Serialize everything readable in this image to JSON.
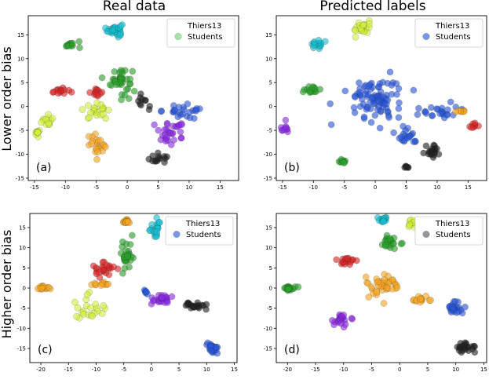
{
  "figure": {
    "column_titles": [
      "Real data",
      "Predicted labels"
    ],
    "row_titles": [
      "Lower order bias",
      "Higher order bias"
    ]
  },
  "cluster_colors": {
    "red": "#d62728",
    "green": "#2ca02c",
    "cyan": "#17becf",
    "yellow": "#d4f03c",
    "orange": "#f5a623",
    "purple": "#8a2be2",
    "blue": "#2b57d8",
    "black": "#222222",
    "lightgreen": "#6fd36f",
    "gray": "#555555"
  },
  "chart_data": [
    {
      "type": "scatter",
      "panel_label": "(a)",
      "title": "Real data",
      "ylabel": "Lower order bias",
      "xlim": [
        -16,
        18
      ],
      "ylim": [
        -15.5,
        19
      ],
      "xticks": [
        -15,
        -10,
        -5,
        0,
        5,
        10,
        15
      ],
      "yticks": [
        -15,
        -10,
        -5,
        0,
        5,
        10,
        15
      ],
      "legend": [
        {
          "label": "Thiers13",
          "marker": "none"
        },
        {
          "label": "Students",
          "color": "#6fd36f"
        }
      ],
      "clusters": [
        {
          "color": "cyan",
          "n": 28,
          "cx": -2,
          "cy": 16,
          "sx": 1.1,
          "sy": 1.3
        },
        {
          "color": "green",
          "n": 14,
          "cx": -9,
          "cy": 13,
          "sx": 1.3,
          "sy": 0.8
        },
        {
          "color": "green",
          "n": 40,
          "cx": -1,
          "cy": 5.5,
          "sx": 1.6,
          "sy": 2.6
        },
        {
          "color": "red",
          "n": 14,
          "cx": -11,
          "cy": 3.3,
          "sx": 1.4,
          "sy": 0.7
        },
        {
          "color": "red",
          "n": 12,
          "cx": -5,
          "cy": 3,
          "sx": 1.2,
          "sy": 0.8
        },
        {
          "color": "yellow",
          "n": 12,
          "cx": -13,
          "cy": -3,
          "sx": 1.0,
          "sy": 1.1
        },
        {
          "color": "yellow",
          "n": 10,
          "cx": -14.5,
          "cy": -5.5,
          "sx": 0.4,
          "sy": 0.5
        },
        {
          "color": "yellow",
          "n": 22,
          "cx": -5,
          "cy": -1,
          "sx": 2.0,
          "sy": 1.4
        },
        {
          "color": "orange",
          "n": 22,
          "cx": -5,
          "cy": -8,
          "sx": 1.3,
          "sy": 2.2
        },
        {
          "color": "blue",
          "n": 24,
          "cx": 10,
          "cy": -1,
          "sx": 4.0,
          "sy": 1.2
        },
        {
          "color": "purple",
          "n": 30,
          "cx": 7,
          "cy": -5.5,
          "sx": 2.6,
          "sy": 2.0
        },
        {
          "color": "black",
          "n": 14,
          "cx": 5,
          "cy": -11,
          "sx": 1.6,
          "sy": 1.1
        },
        {
          "color": "black",
          "n": 10,
          "cx": 2.5,
          "cy": 0.5,
          "sx": 1.0,
          "sy": 1.3
        }
      ]
    },
    {
      "type": "scatter",
      "panel_label": "(b)",
      "title": "Predicted labels",
      "xlim": [
        -16,
        18
      ],
      "ylim": [
        -15.5,
        19
      ],
      "xticks": [
        -15,
        -10,
        -5,
        0,
        5,
        10,
        15
      ],
      "yticks": [
        -15,
        -10,
        -5,
        0,
        5,
        10,
        15
      ],
      "legend": [
        {
          "label": "Thiers13",
          "marker": "none"
        },
        {
          "label": "Students",
          "color": "#2b57d8"
        }
      ],
      "clusters": [
        {
          "color": "cyan",
          "n": 16,
          "cx": -9.5,
          "cy": 13,
          "sx": 1.0,
          "sy": 1.0
        },
        {
          "color": "yellow",
          "n": 22,
          "cx": -2,
          "cy": 16.5,
          "sx": 1.2,
          "sy": 1.2
        },
        {
          "color": "green",
          "n": 16,
          "cx": -10,
          "cy": 3.5,
          "sx": 1.2,
          "sy": 0.8
        },
        {
          "color": "green",
          "n": 10,
          "cx": -5.5,
          "cy": -11.5,
          "sx": 0.6,
          "sy": 0.5
        },
        {
          "color": "purple",
          "n": 10,
          "cx": -14.5,
          "cy": -4.5,
          "sx": 0.6,
          "sy": 1.4
        },
        {
          "color": "blue",
          "n": 90,
          "cx": 0,
          "cy": 1.5,
          "sx": 4.0,
          "sy": 4.2
        },
        {
          "color": "blue",
          "n": 24,
          "cx": 10,
          "cy": -1,
          "sx": 3.2,
          "sy": 1.3
        },
        {
          "color": "blue",
          "n": 20,
          "cx": 5,
          "cy": -6,
          "sx": 1.8,
          "sy": 1.6
        },
        {
          "color": "orange",
          "n": 8,
          "cx": 14,
          "cy": -1,
          "sx": 1.2,
          "sy": 0.5
        },
        {
          "color": "red",
          "n": 8,
          "cx": 16,
          "cy": -4,
          "sx": 0.6,
          "sy": 0.5
        },
        {
          "color": "black",
          "n": 20,
          "cx": 9,
          "cy": -9.5,
          "sx": 1.5,
          "sy": 1.5
        },
        {
          "color": "black",
          "n": 6,
          "cx": 5,
          "cy": -12.5,
          "sx": 0.5,
          "sy": 0.6
        }
      ]
    },
    {
      "type": "scatter",
      "panel_label": "(c)",
      "ylabel": "Higher order bias",
      "xlim": [
        -22,
        15.5
      ],
      "ylim": [
        -18.5,
        18.5
      ],
      "xticks": [
        -20,
        -15,
        -10,
        -5,
        0,
        5,
        10,
        15
      ],
      "yticks": [
        -15,
        -10,
        -5,
        0,
        5,
        10,
        15
      ],
      "legend": [
        {
          "label": "Thiers13",
          "marker": "none"
        },
        {
          "label": "Students",
          "color": "#2b57d8"
        }
      ],
      "clusters": [
        {
          "color": "orange",
          "n": 16,
          "cx": -4.5,
          "cy": 16.5,
          "sx": 0.8,
          "sy": 0.6
        },
        {
          "color": "cyan",
          "n": 22,
          "cx": 1,
          "cy": 15,
          "sx": 1.2,
          "sy": 2.2
        },
        {
          "color": "green",
          "n": 30,
          "cx": -4.5,
          "cy": 8,
          "sx": 1.0,
          "sy": 3.6
        },
        {
          "color": "red",
          "n": 24,
          "cx": -9,
          "cy": 4.5,
          "sx": 2.4,
          "sy": 2.0
        },
        {
          "color": "orange",
          "n": 18,
          "cx": -19.5,
          "cy": 0,
          "sx": 1.0,
          "sy": 0.5
        },
        {
          "color": "orange",
          "n": 12,
          "cx": -9,
          "cy": 1,
          "sx": 1.4,
          "sy": 0.5
        },
        {
          "color": "yellow",
          "n": 22,
          "cx": -11,
          "cy": -6,
          "sx": 2.4,
          "sy": 3.4
        },
        {
          "color": "purple",
          "n": 24,
          "cx": 1.5,
          "cy": -2.5,
          "sx": 2.6,
          "sy": 1.2
        },
        {
          "color": "black",
          "n": 22,
          "cx": 8,
          "cy": -4.5,
          "sx": 1.8,
          "sy": 0.8
        },
        {
          "color": "blue",
          "n": 22,
          "cx": 11,
          "cy": -15,
          "sx": 1.0,
          "sy": 1.3
        },
        {
          "color": "blue",
          "n": 6,
          "cx": -1,
          "cy": -1,
          "sx": 0.5,
          "sy": 0.5
        }
      ]
    },
    {
      "type": "scatter",
      "panel_label": "(d)",
      "xlim": [
        -22,
        15.5
      ],
      "ylim": [
        -18.5,
        18.5
      ],
      "xticks": [
        -20,
        -15,
        -10,
        -5,
        0,
        5,
        10,
        15
      ],
      "yticks": [
        -15,
        -10,
        -5,
        0,
        5,
        10,
        15
      ],
      "legend": [
        {
          "label": "Thiers13",
          "marker": "none"
        },
        {
          "label": "Students",
          "color": "#555555"
        }
      ],
      "clusters": [
        {
          "color": "cyan",
          "n": 16,
          "cx": -3,
          "cy": 17,
          "sx": 1.0,
          "sy": 0.6
        },
        {
          "color": "yellow",
          "n": 14,
          "cx": 2,
          "cy": 16,
          "sx": 1.0,
          "sy": 1.0
        },
        {
          "color": "green",
          "n": 26,
          "cx": -2,
          "cy": 11,
          "sx": 1.6,
          "sy": 1.8
        },
        {
          "color": "red",
          "n": 18,
          "cx": -9.5,
          "cy": 6.5,
          "sx": 1.4,
          "sy": 1.0
        },
        {
          "color": "green",
          "n": 18,
          "cx": -19.5,
          "cy": 0,
          "sx": 1.0,
          "sy": 0.6
        },
        {
          "color": "orange",
          "n": 42,
          "cx": -3,
          "cy": 1,
          "sx": 2.8,
          "sy": 2.6
        },
        {
          "color": "orange",
          "n": 14,
          "cx": 4,
          "cy": -3,
          "sx": 1.4,
          "sy": 0.8
        },
        {
          "color": "purple",
          "n": 22,
          "cx": -10.5,
          "cy": -8,
          "sx": 1.4,
          "sy": 1.4
        },
        {
          "color": "blue",
          "n": 26,
          "cx": 10,
          "cy": -5,
          "sx": 1.4,
          "sy": 1.2
        },
        {
          "color": "black",
          "n": 22,
          "cx": 11.5,
          "cy": -15,
          "sx": 1.4,
          "sy": 1.4
        }
      ]
    }
  ]
}
